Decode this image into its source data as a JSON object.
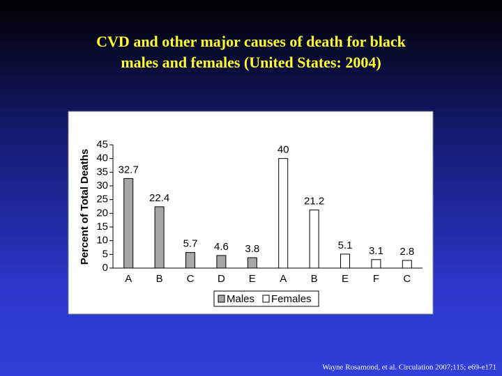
{
  "chart_data": {
    "type": "bar",
    "title": [
      "CVD and other major causes of death for black",
      "males and females (United States: 2004)"
    ],
    "ylabel": "Percent of Total Deaths",
    "categories": [
      "A",
      "B",
      "C",
      "D",
      "E",
      "A",
      "B",
      "E",
      "F",
      "C"
    ],
    "series": [
      {
        "name": "Males",
        "color": "#a6a6a6",
        "values": [
          32.7,
          22.4,
          5.7,
          4.6,
          3.8,
          null,
          null,
          null,
          null,
          null
        ]
      },
      {
        "name": "Females",
        "color": "#ffffff",
        "values": [
          null,
          null,
          null,
          null,
          null,
          40,
          21.2,
          5.1,
          3.1,
          2.8
        ]
      }
    ],
    "ylim": [
      0,
      45
    ],
    "yticks": [
      0,
      5,
      10,
      15,
      20,
      25,
      30,
      35,
      40,
      45
    ],
    "legend": "bottom",
    "source": "Wayne Rosamond, et al. Circulation  2007;115; e69-e171"
  }
}
